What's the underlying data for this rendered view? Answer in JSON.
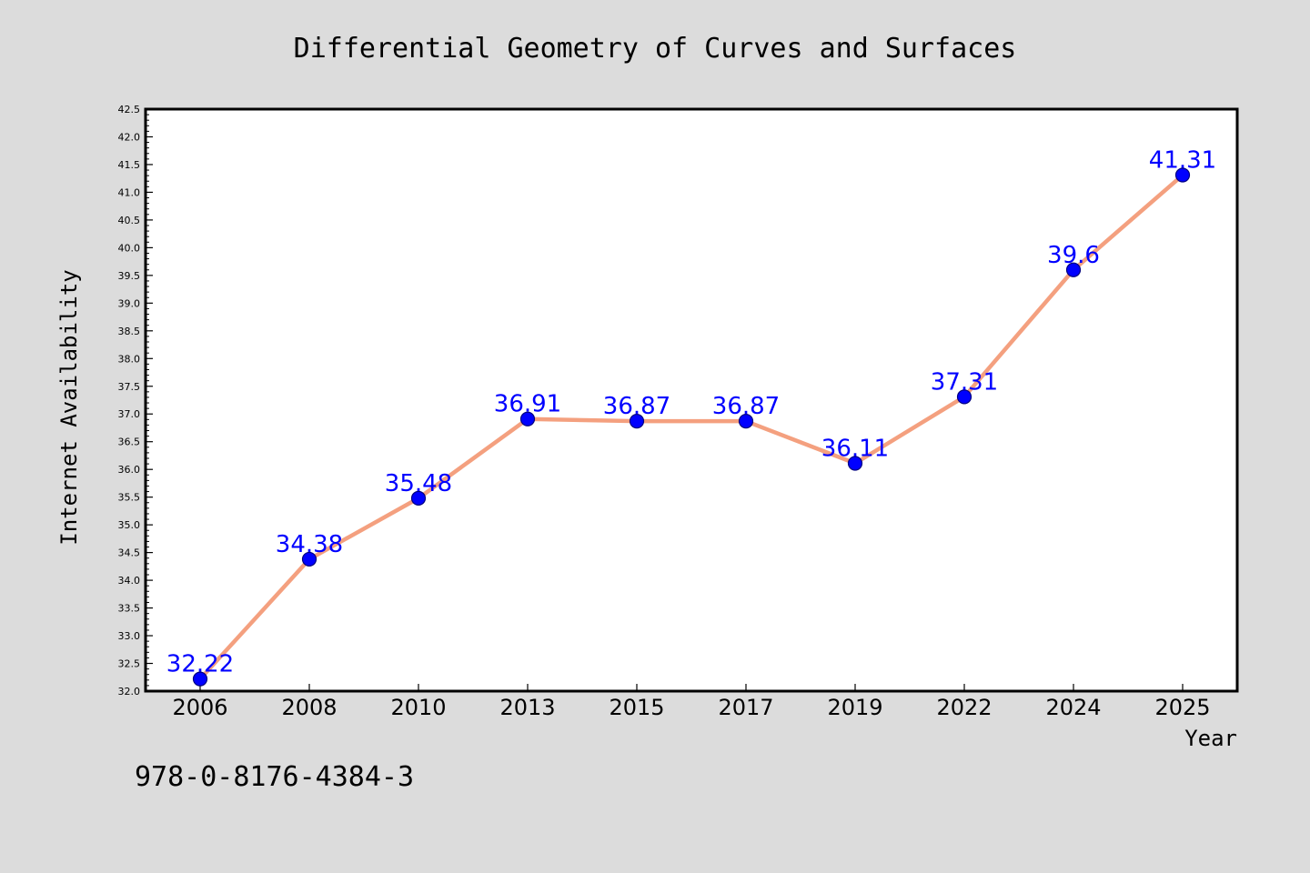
{
  "chart_data": {
    "type": "line",
    "title": "Differential Geometry of Curves and Surfaces",
    "xlabel": "Year",
    "ylabel": "Internet Availability",
    "categories": [
      "2006",
      "2008",
      "2010",
      "2013",
      "2015",
      "2017",
      "2019",
      "2022",
      "2024",
      "2025"
    ],
    "series": [
      {
        "values": [
          32.22,
          34.38,
          35.48,
          36.91,
          36.87,
          36.87,
          36.11,
          37.31,
          39.6,
          41.31
        ],
        "data_labels": [
          "32.22",
          "34.38",
          "35.48",
          "36.91",
          "36.87",
          "36.87",
          "36.11",
          "37.31",
          "39.6",
          "41.31"
        ]
      }
    ],
    "ylim": [
      32.0,
      42.5
    ],
    "y_tick_step": 0.5,
    "y_tick_labels": [
      "32.0",
      "32.5",
      "33.0",
      "33.5",
      "34.0",
      "34.5",
      "35.0",
      "35.5",
      "36.0",
      "36.5",
      "37.0",
      "37.5",
      "38.0",
      "38.5",
      "39.0",
      "39.5",
      "40.0",
      "40.5",
      "41.0",
      "41.5",
      "42.0",
      "42.5"
    ],
    "grid": false,
    "legend": "none",
    "colors": {
      "line": "#f4a07f",
      "marker": "#0000ff",
      "marker_edge": "#000080",
      "data_label": "#0000ff",
      "plot_background": "#ffffff",
      "figure_background": "#dcdcdc"
    }
  },
  "footer": {
    "isbn": "978-0-8176-4384-3"
  }
}
